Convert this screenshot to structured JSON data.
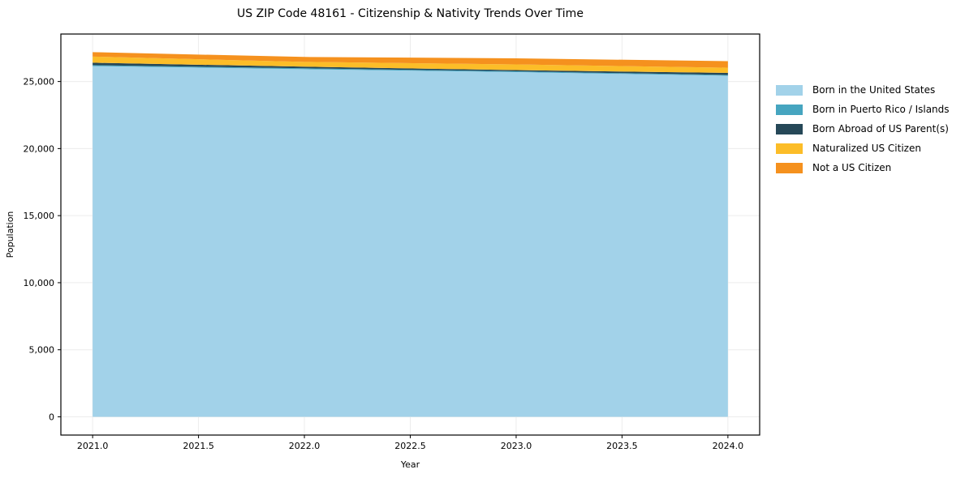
{
  "title": "US ZIP Code 48161 - Citizenship & Nativity Trends Over Time",
  "chart_data": {
    "type": "area",
    "stacked": true,
    "title": "US ZIP Code 48161 - Citizenship & Nativity Trends Over Time",
    "xlabel": "Year",
    "ylabel": "Population",
    "x": [
      2021,
      2022,
      2023,
      2024
    ],
    "series": [
      {
        "name": "Born in the United States",
        "color": "#A2D2E9",
        "values": [
          26150,
          25920,
          25700,
          25430
        ]
      },
      {
        "name": "Born in Puerto Rico / Islands",
        "color": "#46A5C0",
        "values": [
          70,
          65,
          60,
          60
        ]
      },
      {
        "name": "Born Abroad of US Parent(s)",
        "color": "#264858",
        "values": [
          180,
          120,
          90,
          150
        ]
      },
      {
        "name": "Naturalized US Citizen",
        "color": "#FCBD28",
        "values": [
          460,
          360,
          425,
          390
        ]
      },
      {
        "name": "Not a US Citizen",
        "color": "#F5911E",
        "values": [
          330,
          365,
          455,
          485
        ]
      }
    ],
    "xlim": [
      2020.85,
      2024.15
    ],
    "ylim": [
      -1360,
      28540
    ],
    "x_tick_values": [
      2021.0,
      2021.5,
      2022.0,
      2022.5,
      2023.0,
      2023.5,
      2024.0
    ],
    "x_tick_labels": [
      "2021.0",
      "2021.5",
      "2022.0",
      "2022.5",
      "2023.0",
      "2023.5",
      "2024.0"
    ],
    "y_tick_values": [
      0,
      5000,
      10000,
      15000,
      20000,
      25000
    ],
    "y_tick_labels": [
      "0",
      "5,000",
      "10,000",
      "15,000",
      "20,000",
      "25,000"
    ],
    "grid": true,
    "gridline_color": "#ececec",
    "spine_color": "#000000",
    "text_color": "#000000",
    "legend_position": "right"
  }
}
